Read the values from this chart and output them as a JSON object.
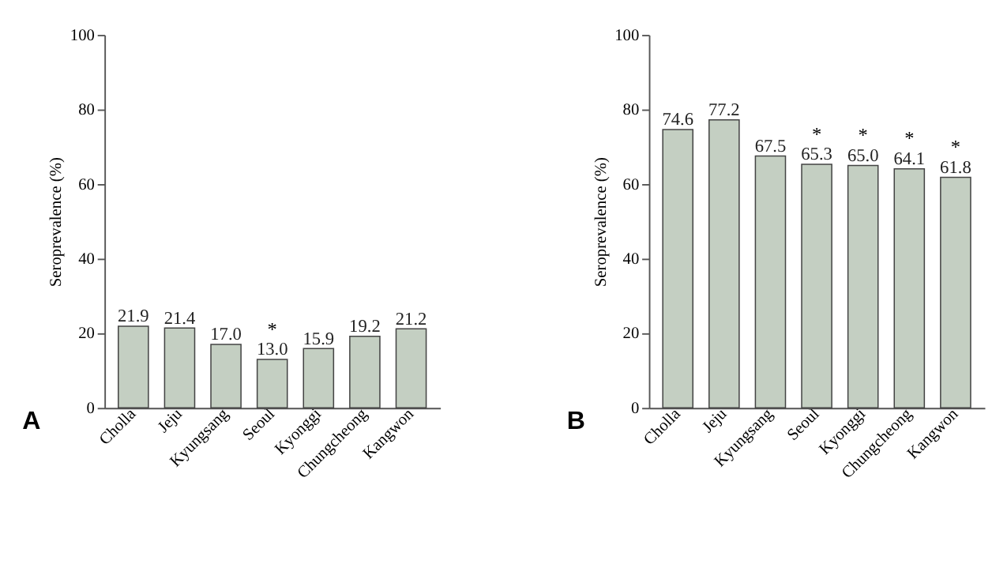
{
  "chart_data": [
    {
      "type": "bar",
      "ylabel": "Seroprevalence (%)",
      "categories": [
        "Cholla",
        "Jeju",
        "Kyungsang",
        "Seoul",
        "Kyonggi",
        "Chungcheong",
        "Kangwon"
      ],
      "values": [
        21.9,
        21.4,
        17.0,
        13.0,
        15.9,
        19.2,
        21.2
      ],
      "value_labels": [
        "21.9",
        "21.4",
        "17.0",
        "13.0",
        "15.9",
        "19.2",
        "21.2"
      ],
      "color": "#c4cfc2",
      "ylim": [
        0,
        100
      ],
      "yticks": [
        0,
        20,
        40,
        60,
        80,
        100
      ],
      "grid": false,
      "annotations": [
        "A",
        {
          "text": "*",
          "x": "Seoul",
          "y": 13.0
        }
      ]
    },
    {
      "type": "bar",
      "ylabel": "Seroprevalence (%)",
      "categories": [
        "Cholla",
        "Jeju",
        "Kyungsang",
        "Seoul",
        "Kyonggi",
        "Chungcheong",
        "Kangwon"
      ],
      "values": [
        74.6,
        77.2,
        67.5,
        65.3,
        65.0,
        64.1,
        61.8
      ],
      "value_labels": [
        "74.6",
        "77.2",
        "67.5",
        "65.3",
        "65.0",
        "64.1",
        "61.8"
      ],
      "color": "#c4cfc2",
      "ylim": [
        0,
        100
      ],
      "yticks": [
        0,
        20,
        40,
        60,
        80,
        100
      ],
      "grid": false,
      "annotations": [
        "B",
        {
          "text": "*",
          "x": "Seoul",
          "y": 65.3
        },
        {
          "text": "*",
          "x": "Kyonggi",
          "y": 65.0
        },
        {
          "text": "*",
          "x": "Chungcheong",
          "y": 64.1
        },
        {
          "text": "*",
          "x": "Kangwon",
          "y": 61.8
        }
      ]
    }
  ]
}
